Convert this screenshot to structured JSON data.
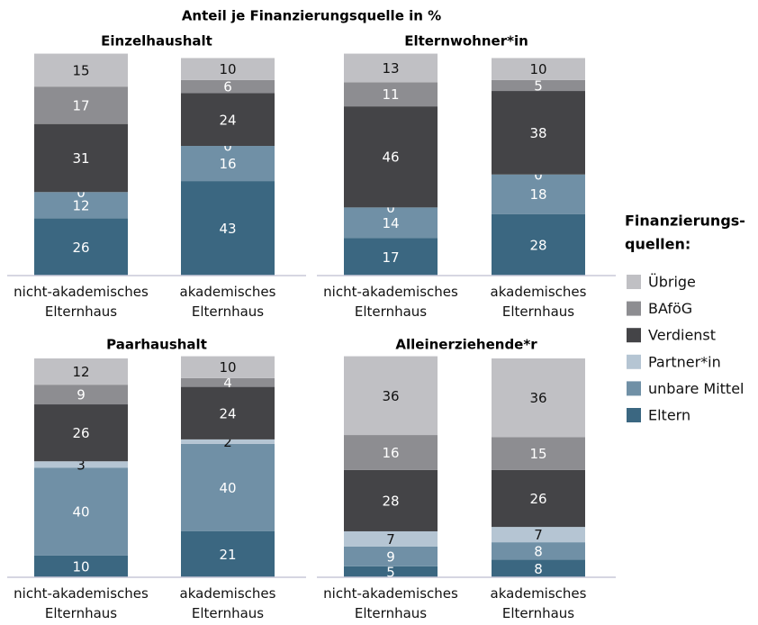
{
  "title": "Anteil je Finanzierungsquelle in %",
  "legend_title": [
    "Finanzierungs-",
    "quellen:"
  ],
  "chart_data": [
    {
      "type": "stacked_bar",
      "title": "Einzelhaushalt",
      "categories": [
        "nicht-akademisches Elternhaus",
        "akademisches Elternhaus"
      ],
      "ylim": [
        0,
        100
      ],
      "series": [
        {
          "name": "Eltern",
          "color": "#3b6781",
          "label_color": "#ffffff",
          "values": [
            26,
            43
          ]
        },
        {
          "name": "unbare Mittel",
          "color": "#7090a6",
          "label_color": "#ffffff",
          "values": [
            12,
            16
          ]
        },
        {
          "name": "Partner*in",
          "color": "#b5c5d3",
          "label_color": "#ffffff",
          "values": [
            0,
            0
          ]
        },
        {
          "name": "Verdienst",
          "color": "#444447",
          "label_color": "#ffffff",
          "values": [
            31,
            24
          ]
        },
        {
          "name": "BAföG",
          "color": "#8d8d91",
          "label_color": "#ffffff",
          "values": [
            17,
            6
          ]
        },
        {
          "name": "Übrige",
          "color": "#c0c0c4",
          "label_color": "#111111",
          "values": [
            15,
            10
          ]
        }
      ]
    },
    {
      "type": "stacked_bar",
      "title": "Elternwohner*in",
      "categories": [
        "nicht-akademisches Elternhaus",
        "akademisches Elternhaus"
      ],
      "ylim": [
        0,
        100
      ],
      "series": [
        {
          "name": "Eltern",
          "color": "#3b6781",
          "label_color": "#ffffff",
          "values": [
            17,
            28
          ]
        },
        {
          "name": "unbare Mittel",
          "color": "#7090a6",
          "label_color": "#ffffff",
          "values": [
            14,
            18
          ]
        },
        {
          "name": "Partner*in",
          "color": "#b5c5d3",
          "label_color": "#ffffff",
          "values": [
            0,
            0
          ]
        },
        {
          "name": "Verdienst",
          "color": "#444447",
          "label_color": "#ffffff",
          "values": [
            46,
            38
          ]
        },
        {
          "name": "BAföG",
          "color": "#8d8d91",
          "label_color": "#ffffff",
          "values": [
            11,
            5
          ]
        },
        {
          "name": "Übrige",
          "color": "#c0c0c4",
          "label_color": "#111111",
          "values": [
            13,
            10
          ]
        }
      ]
    },
    {
      "type": "stacked_bar",
      "title": "Paarhaushalt",
      "categories": [
        "nicht-akademisches Elternhaus",
        "akademisches Elternhaus"
      ],
      "ylim": [
        0,
        100
      ],
      "series": [
        {
          "name": "Eltern",
          "color": "#3b6781",
          "label_color": "#ffffff",
          "values": [
            10,
            21
          ]
        },
        {
          "name": "unbare Mittel",
          "color": "#7090a6",
          "label_color": "#ffffff",
          "values": [
            40,
            40
          ]
        },
        {
          "name": "Partner*in",
          "color": "#b5c5d3",
          "label_color": "#111111",
          "values": [
            3,
            2
          ]
        },
        {
          "name": "Verdienst",
          "color": "#444447",
          "label_color": "#ffffff",
          "values": [
            26,
            24
          ]
        },
        {
          "name": "BAföG",
          "color": "#8d8d91",
          "label_color": "#ffffff",
          "values": [
            9,
            4
          ]
        },
        {
          "name": "Übrige",
          "color": "#c0c0c4",
          "label_color": "#111111",
          "values": [
            12,
            10
          ]
        }
      ]
    },
    {
      "type": "stacked_bar",
      "title": "Alleinerziehende*r",
      "categories": [
        "nicht-akademisches Elternhaus",
        "akademisches Elternhaus"
      ],
      "ylim": [
        0,
        100
      ],
      "series": [
        {
          "name": "Eltern",
          "color": "#3b6781",
          "label_color": "#ffffff",
          "values": [
            5,
            8
          ]
        },
        {
          "name": "unbare Mittel",
          "color": "#7090a6",
          "label_color": "#ffffff",
          "values": [
            9,
            8
          ]
        },
        {
          "name": "Partner*in",
          "color": "#b5c5d3",
          "label_color": "#111111",
          "values": [
            7,
            7
          ]
        },
        {
          "name": "Verdienst",
          "color": "#444447",
          "label_color": "#ffffff",
          "values": [
            28,
            26
          ]
        },
        {
          "name": "BAföG",
          "color": "#8d8d91",
          "label_color": "#ffffff",
          "values": [
            16,
            15
          ]
        },
        {
          "name": "Übrige",
          "color": "#c0c0c4",
          "label_color": "#111111",
          "values": [
            36,
            36
          ]
        }
      ]
    }
  ]
}
